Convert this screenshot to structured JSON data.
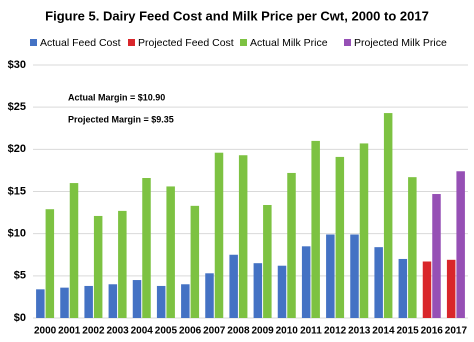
{
  "chart_data": {
    "type": "bar",
    "title": "Figure 5.  Dairy Feed Cost  and Milk Price per Cwt, 2000 to 2017",
    "categories": [
      "2000",
      "2001",
      "2002",
      "2003",
      "2004",
      "2005",
      "2006",
      "2007",
      "2008",
      "2009",
      "2010",
      "2011",
      "2012",
      "2013",
      "2014",
      "2015",
      "2016",
      "2017"
    ],
    "series": [
      {
        "name": "Actual Feed Cost",
        "color": "#4472c4",
        "values": [
          3.4,
          3.6,
          3.8,
          4.0,
          4.5,
          3.8,
          4.0,
          5.3,
          7.5,
          6.5,
          6.2,
          8.5,
          9.9,
          9.9,
          8.4,
          7.0,
          null,
          null
        ]
      },
      {
        "name": "Projected Feed Cost",
        "color": "#d9262b",
        "values": [
          null,
          null,
          null,
          null,
          null,
          null,
          null,
          null,
          null,
          null,
          null,
          null,
          null,
          null,
          null,
          null,
          6.7,
          6.9
        ]
      },
      {
        "name": "Actual Milk Price",
        "color": "#7dc242",
        "values": [
          12.9,
          16.0,
          12.1,
          12.7,
          16.6,
          15.6,
          13.3,
          19.6,
          19.3,
          13.4,
          17.2,
          21.0,
          19.1,
          20.7,
          24.3,
          16.7,
          null,
          null
        ]
      },
      {
        "name": "Projected Milk Price",
        "color": "#9650b5",
        "values": [
          null,
          null,
          null,
          null,
          null,
          null,
          null,
          null,
          null,
          null,
          null,
          null,
          null,
          null,
          null,
          null,
          14.7,
          17.4
        ]
      }
    ],
    "annotations": [
      "Actual Margin = $10.90",
      "Projected Margin = $9.35"
    ],
    "ylim": [
      0,
      30
    ],
    "yticks": [
      {
        "value": 0,
        "label": "$0"
      },
      {
        "value": 5,
        "label": "$5"
      },
      {
        "value": 10,
        "label": "$10"
      },
      {
        "value": 15,
        "label": "$15"
      },
      {
        "value": 20,
        "label": "$20"
      },
      {
        "value": 25,
        "label": "$25"
      },
      {
        "value": 30,
        "label": "$30"
      }
    ],
    "grid": true
  }
}
